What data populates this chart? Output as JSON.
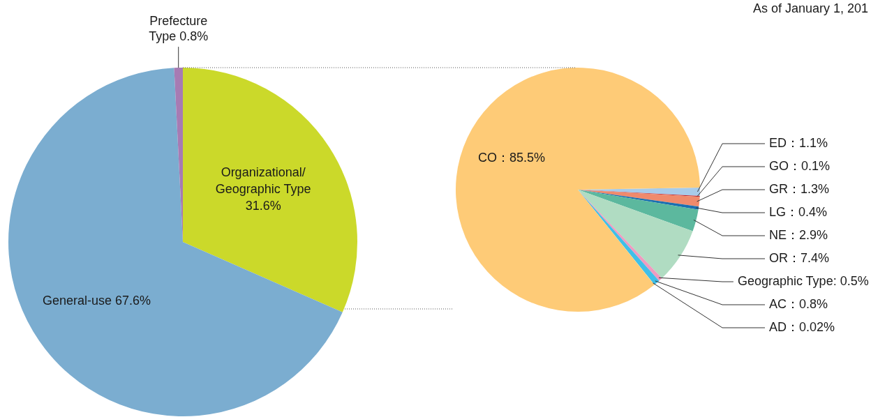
{
  "chart_data": [
    {
      "type": "pie",
      "categories": [
        "Organizational/Geographic Type",
        "General-use",
        "Prefecture Type"
      ],
      "values": [
        31.6,
        67.6,
        0.8
      ],
      "colors": [
        "#cbd92a",
        "#7badd0",
        "#a77bb3"
      ],
      "value_labels": [
        "31.6%",
        "67.6%",
        "0.8%"
      ],
      "legend": false
    },
    {
      "type": "pie",
      "categories": [
        "ED",
        "GO",
        "GR",
        "LG",
        "NE",
        "OR",
        "Geographic Type",
        "AC",
        "AD",
        "CO"
      ],
      "values": [
        1.1,
        0.1,
        1.3,
        0.4,
        2.9,
        7.4,
        0.5,
        0.8,
        0.02,
        85.5
      ],
      "colors": [
        "#a7cbea",
        "#c0272d",
        "#ef8a6c",
        "#1a6fb0",
        "#5cb89e",
        "#b0dcc2",
        "#ef9bc0",
        "#40bfe8",
        "#fff176",
        "#fecb77"
      ],
      "value_labels": [
        "：1.1%",
        "：0.1%",
        "：1.3%",
        "：0.4%",
        "：2.9%",
        "：7.4%",
        ": 0.5%",
        "：0.8%",
        "：0.02%",
        "：85.5%"
      ],
      "legend": false,
      "annotations": [
        "As of January 1, 201"
      ]
    }
  ]
}
